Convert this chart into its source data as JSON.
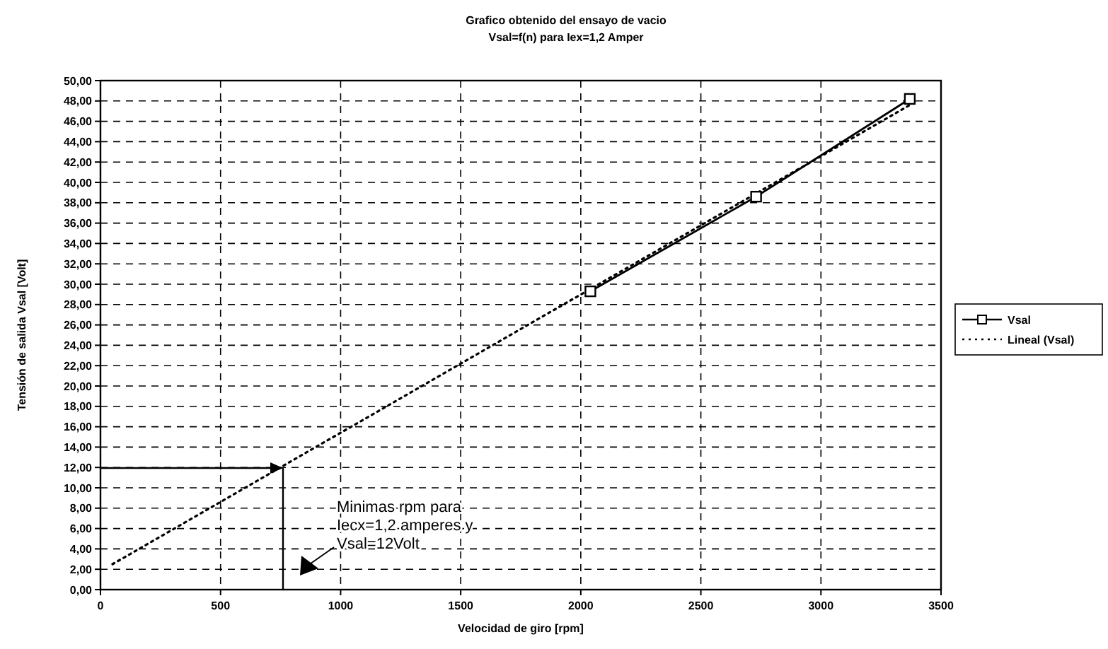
{
  "chart_data": {
    "type": "line",
    "title": "Grafico obtenido del ensayo de vacio",
    "subtitle": "Vsal=f(n) para Iex=1,2 Amper",
    "xlabel": "Velocidad de giro [rpm]",
    "ylabel": "Tensión de salida Vsal [Volt]",
    "xlim": [
      0,
      3500
    ],
    "xticks": [
      0,
      500,
      1000,
      1500,
      2000,
      2500,
      3000,
      3500
    ],
    "ylim": [
      0,
      50
    ],
    "yticks": [
      {
        "value": 0,
        "label": "0,00"
      },
      {
        "value": 2,
        "label": "2,00"
      },
      {
        "value": 4,
        "label": "4,00"
      },
      {
        "value": 6,
        "label": "6,00"
      },
      {
        "value": 8,
        "label": "8,00"
      },
      {
        "value": 10,
        "label": "10,00"
      },
      {
        "value": 12,
        "label": "12,00"
      },
      {
        "value": 14,
        "label": "14,00"
      },
      {
        "value": 16,
        "label": "16,00"
      },
      {
        "value": 18,
        "label": "18,00"
      },
      {
        "value": 20,
        "label": "20,00"
      },
      {
        "value": 22,
        "label": "22,00"
      },
      {
        "value": 24,
        "label": "24,00"
      },
      {
        "value": 26,
        "label": "26,00"
      },
      {
        "value": 28,
        "label": "28,00"
      },
      {
        "value": 30,
        "label": "30,00"
      },
      {
        "value": 32,
        "label": "32,00"
      },
      {
        "value": 34,
        "label": "34,00"
      },
      {
        "value": 36,
        "label": "36,00"
      },
      {
        "value": 38,
        "label": "38,00"
      },
      {
        "value": 40,
        "label": "40,00"
      },
      {
        "value": 42,
        "label": "42,00"
      },
      {
        "value": 44,
        "label": "44,00"
      },
      {
        "value": 46,
        "label": "46,00"
      },
      {
        "value": 48,
        "label": "48,00"
      },
      {
        "value": 50,
        "label": "50,00"
      }
    ],
    "grid": true,
    "legend": "right",
    "series": [
      {
        "name": "Lineal (Vsal)",
        "color": "#000000",
        "line_style": "dotted",
        "marker": "none",
        "x": [
          50,
          3370
        ],
        "values": [
          2.5,
          47.6
        ]
      },
      {
        "name": "Vsal",
        "color": "#000000",
        "line_style": "solid",
        "marker": "square",
        "x": [
          2040,
          2730,
          3370
        ],
        "values": [
          29.3,
          38.6,
          48.2
        ]
      }
    ],
    "annotations": [
      "Minimas rpm para\nIecx=1,2 amperes y\nVsal=12Volt"
    ]
  }
}
